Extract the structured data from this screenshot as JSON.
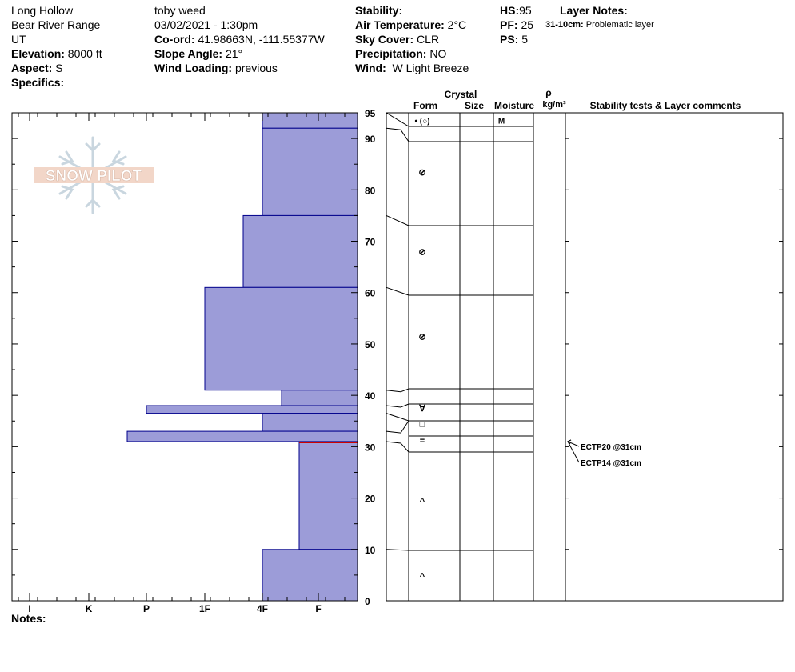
{
  "header": {
    "location": "Long Hollow",
    "range": "Bear River Range",
    "state": "UT",
    "elevation_label": "Elevation:",
    "elevation": "8000 ft",
    "aspect_label": "Aspect:",
    "aspect": "S",
    "specifics_label": "Specifics:",
    "observer": "toby weed",
    "datetime": "03/02/2021 - 1:30pm",
    "coord_label": "Co-ord:",
    "coord": "41.98663N, -111.55377W",
    "slope_label": "Slope Angle:",
    "slope": "21°",
    "wind_loading_label": "Wind Loading:",
    "wind_loading": "previous",
    "stability_label": "Stability:",
    "air_temp_label": "Air Temperature:",
    "air_temp": "2°C",
    "sky_label": "Sky Cover:",
    "sky": "CLR",
    "precip_label": "Precipitation:",
    "precip": "NO",
    "wind_label": "Wind:",
    "wind": "W Light Breeze",
    "hs_label": "HS:",
    "hs": "95",
    "pf_label": "PF:",
    "pf": "25",
    "ps_label": "PS:",
    "ps": "5",
    "layer_notes_label": "Layer Notes:",
    "layer_note_range": "31-10cm:",
    "layer_note_text": "Problematic layer"
  },
  "logo": {
    "text": "SNOW PILOT"
  },
  "notes_label": "Notes:",
  "table_headers": {
    "crystal": "Crystal",
    "form": "Form",
    "size": "Size",
    "moisture": "Moisture",
    "rho": "ρ",
    "density_unit": "kg/m³",
    "stability": "Stability tests & Layer comments"
  },
  "layer_forms": [
    {
      "depth": 93.5,
      "glyph": "• (○)"
    },
    {
      "depth": 83.5,
      "glyph": "⊘"
    },
    {
      "depth": 68,
      "glyph": "⊘"
    },
    {
      "depth": 51.5,
      "glyph": "⊘"
    },
    {
      "depth": 37.5,
      "glyph": "∀"
    },
    {
      "depth": 34.5,
      "glyph": "□"
    },
    {
      "depth": 31.2,
      "glyph": "="
    },
    {
      "depth": 19.5,
      "glyph": "^"
    },
    {
      "depth": 4.8,
      "glyph": "^"
    }
  ],
  "moisture_marks": [
    {
      "depth": 93.5,
      "text": "M"
    }
  ],
  "stability_tests": [
    {
      "depth": 31,
      "text": "ECTP20 @31cm"
    },
    {
      "depth": 31,
      "text": "ECTP14 @31cm"
    }
  ],
  "chart_data": {
    "type": "bar",
    "orientation": "horizontal",
    "xlabel": "",
    "ylabel": "",
    "x_categories": [
      "I",
      "K",
      "P",
      "1F",
      "4F",
      "F"
    ],
    "ylim": [
      0,
      95
    ],
    "y_ticks": [
      0,
      10,
      20,
      30,
      40,
      50,
      60,
      70,
      80,
      90,
      95
    ],
    "layers": [
      {
        "top": 95,
        "bottom": 92,
        "hardness": "4F"
      },
      {
        "top": 92,
        "bottom": 75,
        "hardness": "4F"
      },
      {
        "top": 75,
        "bottom": 61,
        "hardness": "4F+"
      },
      {
        "top": 61,
        "bottom": 41,
        "hardness": "1F"
      },
      {
        "top": 41,
        "bottom": 38,
        "hardness": "4F-"
      },
      {
        "top": 38,
        "bottom": 36.5,
        "hardness": "P"
      },
      {
        "top": 36.5,
        "bottom": 33,
        "hardness": "4F"
      },
      {
        "top": 33,
        "bottom": 31,
        "hardness": "P+"
      },
      {
        "top": 31,
        "bottom": 10,
        "hardness": "F+"
      },
      {
        "top": 10,
        "bottom": 0,
        "hardness": "4F"
      }
    ],
    "critical_layer_depth": 31,
    "colors": {
      "fill": "#9c9cd8",
      "edge": "#00008b",
      "critical": "#cc0000"
    }
  }
}
